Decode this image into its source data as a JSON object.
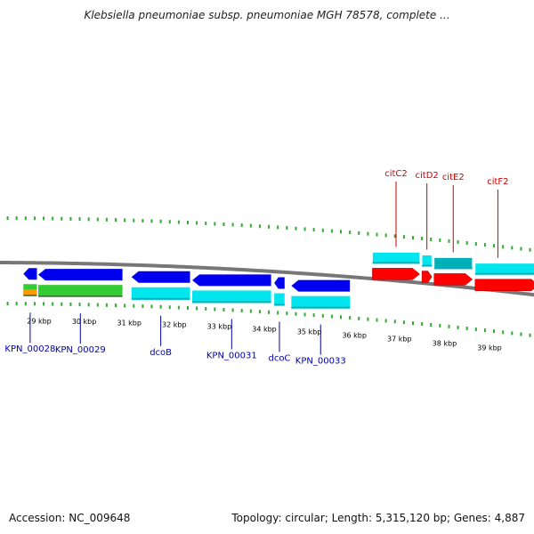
{
  "title": "Klebsiella pneumoniae subsp. pneumoniae MGH 78578, complete ...",
  "footer": {
    "accession": "Accession: NC_009648",
    "stats": "Topology: circular; Length: 5,315,120 bp; Genes: 4,887"
  },
  "colors": {
    "cds": "#0000ee",
    "gene": "#00e5ee",
    "gene_dark": "#00b0b8",
    "rna": "#33cc33",
    "misc": "#ff9900",
    "highlight": "#ff0000",
    "label_blue": "#0000aa",
    "label_red": "#cc0000",
    "tick": "#33aa33",
    "backbone": "#777777"
  },
  "axis": {
    "ticks": [
      {
        "label": "29 kbp",
        "pos": 29
      },
      {
        "label": "30 kbp",
        "pos": 30
      },
      {
        "label": "31 kbp",
        "pos": 31
      },
      {
        "label": "32 kbp",
        "pos": 32
      },
      {
        "label": "33 kbp",
        "pos": 33
      },
      {
        "label": "34 kbp",
        "pos": 34
      },
      {
        "label": "35 kbp",
        "pos": 35
      },
      {
        "label": "36 kbp",
        "pos": 36
      },
      {
        "label": "37 kbp",
        "pos": 37
      },
      {
        "label": "38 kbp",
        "pos": 38
      },
      {
        "label": "39 kbp",
        "pos": 39
      }
    ]
  },
  "lower_genes": [
    {
      "name": "KPN_00028",
      "start": 28.65,
      "end": 28.95,
      "dir": "rev"
    },
    {
      "name": "KPN_00029",
      "start": 28.98,
      "end": 30.85,
      "dir": "rev"
    },
    {
      "name": "dcoB",
      "start": 31.05,
      "end": 32.35,
      "dir": "rev"
    },
    {
      "name": "KPN_00031",
      "start": 32.4,
      "end": 34.15,
      "dir": "rev"
    },
    {
      "name": "dcoC",
      "start": 34.22,
      "end": 34.45,
      "dir": "rev"
    },
    {
      "name": "KPN_00033",
      "start": 34.6,
      "end": 35.9,
      "dir": "rev"
    }
  ],
  "upper_genes": [
    {
      "name": "citC2",
      "start": 36.4,
      "end": 37.45,
      "dir": "fwd"
    },
    {
      "name": "citD2",
      "start": 37.5,
      "end": 37.72,
      "dir": "fwd"
    },
    {
      "name": "citE2",
      "start": 37.77,
      "end": 38.62,
      "dir": "fwd"
    },
    {
      "name": "citF2",
      "start": 38.68,
      "end": 40.4,
      "dir": "fwd"
    }
  ]
}
